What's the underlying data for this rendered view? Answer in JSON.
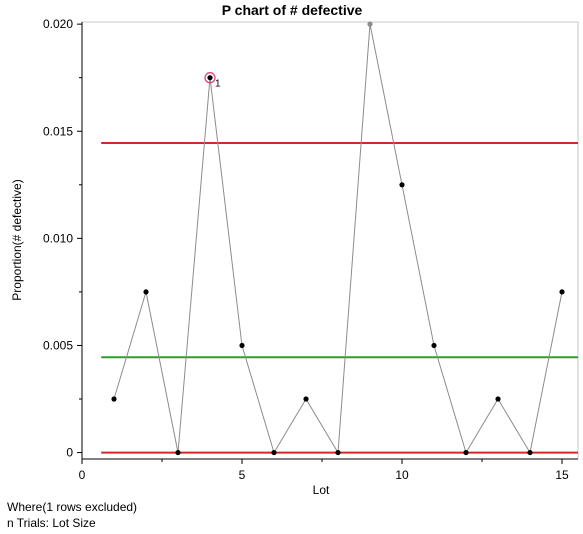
{
  "chart_data": {
    "type": "line",
    "title": "P chart of # defective",
    "xlabel": "Lot",
    "ylabel": "Proportion(# defective)",
    "xlim": [
      0,
      15.5
    ],
    "ylim": [
      -0.0003,
      0.0201
    ],
    "x_ticks": [
      0,
      5,
      10,
      15
    ],
    "y_ticks": [
      0,
      0.005,
      0.01,
      0.015,
      0.02
    ],
    "y_tick_labels": [
      "0",
      "0.005",
      "0.010",
      "0.015",
      "0.020"
    ],
    "x": [
      1,
      2,
      3,
      4,
      5,
      6,
      7,
      8,
      9,
      10,
      11,
      12,
      13,
      14,
      15
    ],
    "values": [
      0.0025,
      0.0075,
      0,
      0.0175,
      0.005,
      0,
      0.0025,
      0,
      0.02,
      0.0125,
      0.005,
      0,
      0.0025,
      0,
      0.0075
    ],
    "excluded_lots": [
      9
    ],
    "flagged_points": [
      {
        "x": 4,
        "label": "1"
      }
    ],
    "limits": {
      "ucl": 0.01445,
      "center": 0.00445,
      "lcl": 0
    },
    "colors": {
      "limit": "#d62728",
      "center": "#2ca02c",
      "line": "#8c8c8c",
      "point": "#000000",
      "excluded_point": "#8c8c8c",
      "flag_ring": "#e0457b"
    }
  },
  "footnotes": {
    "where": "Where(1 rows excluded)",
    "trials": "n Trials: Lot Size"
  }
}
